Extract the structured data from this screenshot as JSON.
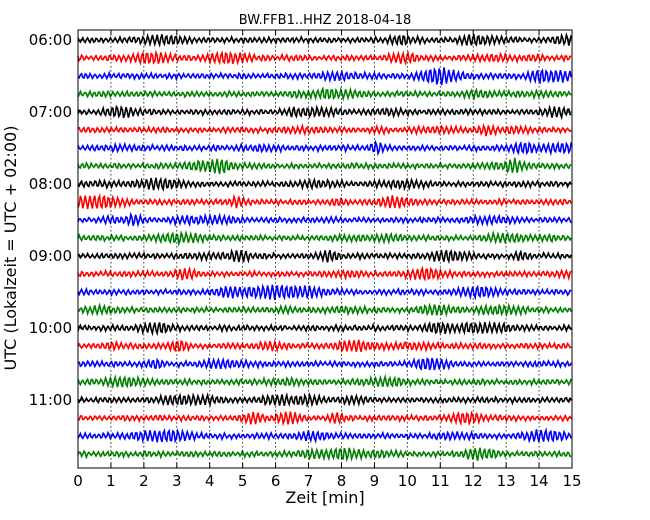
{
  "chart_data": {
    "type": "line",
    "title": "BW.FFB1..HHZ 2018-04-18",
    "xlabel": "Zeit  [min]",
    "ylabel": "UTC (Lokalzeit = UTC + 02:00)",
    "xlim": [
      0,
      15
    ],
    "x_ticks": [
      "0",
      "1",
      "2",
      "3",
      "4",
      "5",
      "6",
      "7",
      "8",
      "9",
      "10",
      "11",
      "12",
      "13",
      "14",
      "15"
    ],
    "y_tick_labels": [
      "06:00",
      "07:00",
      "08:00",
      "09:00",
      "10:00",
      "11:00"
    ],
    "trace_interval_min": 15,
    "trace_colors": [
      "#000000",
      "#ff0000",
      "#0000ff",
      "#008000"
    ],
    "traces": [
      {
        "start": "06:00"
      },
      {
        "start": "06:15"
      },
      {
        "start": "06:30"
      },
      {
        "start": "06:45"
      },
      {
        "start": "07:00"
      },
      {
        "start": "07:15"
      },
      {
        "start": "07:30"
      },
      {
        "start": "07:45"
      },
      {
        "start": "08:00"
      },
      {
        "start": "08:15"
      },
      {
        "start": "08:30"
      },
      {
        "start": "08:45"
      },
      {
        "start": "09:00"
      },
      {
        "start": "09:15"
      },
      {
        "start": "09:30"
      },
      {
        "start": "09:45"
      },
      {
        "start": "10:00"
      },
      {
        "start": "10:15"
      },
      {
        "start": "10:30"
      },
      {
        "start": "10:45"
      },
      {
        "start": "11:00"
      },
      {
        "start": "11:15"
      },
      {
        "start": "11:30"
      },
      {
        "start": "11:45"
      }
    ],
    "grid": "vertical dotted lines at each minute"
  }
}
